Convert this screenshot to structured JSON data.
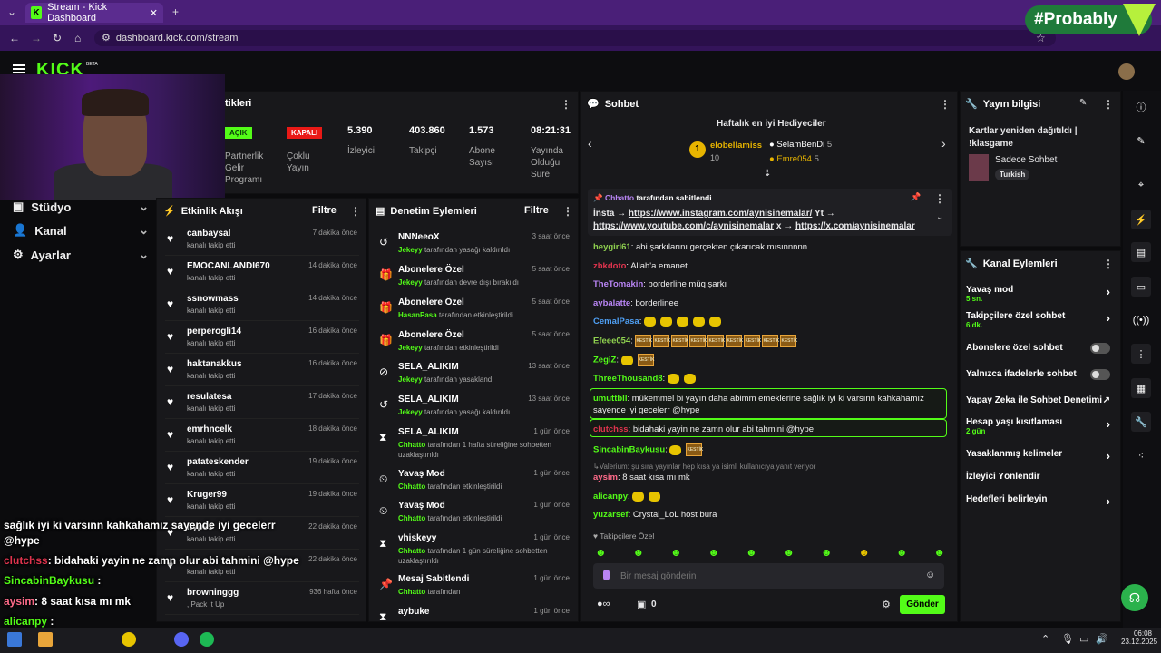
{
  "browser": {
    "tab_title": "Stream - Kick Dashboard",
    "url": "dashboard.kick.com/stream"
  },
  "watermark": "#Probably",
  "kick": {
    "logo": "KICK",
    "beta": "BETA"
  },
  "sidebar": {
    "items": [
      {
        "label": "Stüdyo"
      },
      {
        "label": "Kanal"
      },
      {
        "label": "Ayarlar"
      }
    ]
  },
  "stats": {
    "title": "tikleri",
    "partner": {
      "badge": "AÇIK",
      "label": "Partnerlik Gelir Programı"
    },
    "multi": {
      "badge": "KAPALI",
      "label": "Çoklu Yayın"
    },
    "viewers": {
      "value": "5.390",
      "label": "İzleyici"
    },
    "followers": {
      "value": "403.860",
      "label": "Takipçi"
    },
    "subs": {
      "value": "1.573",
      "label": "Abone Sayısı"
    },
    "duration": {
      "value": "08:21:31",
      "label": "Yayında Olduğu Süre"
    }
  },
  "activity": {
    "title": "Etkinlik Akışı",
    "filter": "Filtre",
    "rows": [
      {
        "name": "canbaysal",
        "sub": "kanalı takip etti",
        "time": "7 dakika önce"
      },
      {
        "name": "EMOCANLANDI670",
        "sub": "kanalı takip etti",
        "time": "14 dakika önce"
      },
      {
        "name": "ssnowmass",
        "sub": "kanalı takip etti",
        "time": "14 dakika önce"
      },
      {
        "name": "perperogli14",
        "sub": "kanalı takip etti",
        "time": "16 dakika önce"
      },
      {
        "name": "haktanakkus",
        "sub": "kanalı takip etti",
        "time": "16 dakika önce"
      },
      {
        "name": "resulatesa",
        "sub": "kanalı takip etti",
        "time": "17 dakika önce"
      },
      {
        "name": "emrhncelk",
        "sub": "kanalı takip etti",
        "time": "18 dakika önce"
      },
      {
        "name": "patateskender",
        "sub": "kanalı takip etti",
        "time": "19 dakika önce"
      },
      {
        "name": "Kruger99",
        "sub": "kanalı takip etti",
        "time": "19 dakika önce"
      },
      {
        "name": "hyp99",
        "sub": "kanalı takip etti",
        "time": "22 dakika önce"
      },
      {
        "name": "",
        "sub": "kanalı takip etti",
        "time": "22 dakika önce"
      },
      {
        "name": "browninggg",
        "sub": ", Pack It Up",
        "time": "936 hafta önce"
      }
    ]
  },
  "moderation": {
    "title": "Denetim Eylemleri",
    "filter": "Filtre",
    "rows": [
      {
        "icon": "↺",
        "name": "NNNeeoX",
        "user": "Jekeyy",
        "rest": "tarafından yasağı kaldırıldı",
        "time": "3 saat önce"
      },
      {
        "icon": "🎁",
        "name": "Abonelere Özel",
        "user": "Jekeyy",
        "rest": "tarafından devre dışı bırakıldı",
        "time": "5 saat önce"
      },
      {
        "icon": "🎁",
        "name": "Abonelere Özel",
        "user": "HasanPasa",
        "rest": "tarafından etkinleştirildi",
        "time": "5 saat önce"
      },
      {
        "icon": "🎁",
        "name": "Abonelere Özel",
        "user": "Jekeyy",
        "rest": "tarafından etkinleştirildi",
        "time": "5 saat önce"
      },
      {
        "icon": "⊘",
        "name": "SELA_ALIKIM",
        "user": "Jekeyy",
        "rest": "tarafından yasaklandı",
        "time": "13 saat önce"
      },
      {
        "icon": "↺",
        "name": "SELA_ALIKIM",
        "user": "Jekeyy",
        "rest": "tarafından yasağı kaldırıldı",
        "time": "13 saat önce"
      },
      {
        "icon": "⧗",
        "name": "SELA_ALIKIM",
        "user": "Chhatto",
        "rest": "tarafından 1 hafta süreliğine sohbetten uzaklaştırıldı",
        "time": "1 gün önce"
      },
      {
        "icon": "⏲",
        "name": "Yavaş Mod",
        "user": "Chhatto",
        "rest": "tarafından etkinleştirildi",
        "time": "1 gün önce"
      },
      {
        "icon": "⏲",
        "name": "Yavaş Mod",
        "user": "Chhatto",
        "rest": "tarafından etkinleştirildi",
        "time": "1 gün önce"
      },
      {
        "icon": "⧗",
        "name": "vhiskeyy",
        "user": "Chhatto",
        "rest": "tarafından 1 gün süreliğine sohbetten uzaklaştırıldı",
        "time": "1 gün önce"
      },
      {
        "icon": "📌",
        "name": "Mesaj Sabitlendi",
        "user": "Chhatto",
        "rest": "tarafından",
        "time": "1 gün önce"
      },
      {
        "icon": "⧗",
        "name": "aybuke",
        "user": "",
        "rest": "",
        "time": "1 gün önce"
      }
    ]
  },
  "chat": {
    "title": "Sohbet",
    "top_title": "Haftalık en iyi Hediyeciler",
    "top1": {
      "rank": "1",
      "name": "elobellamiss",
      "count": "10"
    },
    "top2": {
      "name": "SelamBenDi",
      "count": "5"
    },
    "top3": {
      "name": "Emre054",
      "count": "5"
    },
    "pinned": {
      "by": "Chhatto",
      "by_suffix": "tarafından sabitlendi",
      "line1_a": "İnsta →",
      "link1": "https://www.instagram.com/aynisinemalar/",
      "line1_b": "Yt →",
      "link2": "https://www.youtube.com/c/aynisinemalar",
      "mid": "x →",
      "link3": "https://x.com/aynisinemalar"
    },
    "messages": [
      {
        "user": "heygirl61",
        "color": "#8fd14f",
        "text": "abi şarkılarını gerçekten çıkarıcak mısınnnnn"
      },
      {
        "user": "zbkdoto",
        "color": "#e0344e",
        "text": "Allah'a emanet"
      },
      {
        "user": "TheTomakin",
        "color": "#b985f5",
        "text": "borderline müq şarkı"
      },
      {
        "user": "aybalatte",
        "color": "#b985f5",
        "text": "borderlinee"
      },
      {
        "user": "CemalPasa",
        "color": "#4fa0f5",
        "text": ""
      },
      {
        "user": "Efeee054",
        "color": "#8fd14f",
        "text": ""
      },
      {
        "user": "ZegiZ",
        "color": "#53fc18",
        "text": ""
      },
      {
        "user": "ThreeThousand8",
        "color": "#53fc18",
        "text": ""
      },
      {
        "user": "umuttbll",
        "color": "#53fc18",
        "text": "mükemmel bi yayın daha abimm emeklerine sağlık iyi ki varsınn kahkahamız sayende iyi gecelerr @hype"
      },
      {
        "user": "clutchss",
        "color": "#e0344e",
        "text": "bidahaki yayin ne zamn olur abi tahmini @hype"
      },
      {
        "user": "SincabinBaykusu",
        "color": "#53fc18",
        "text": ""
      },
      {
        "user": "aysim",
        "color": "#ff6b8a",
        "text": "8 saat kısa mı mk",
        "reply": "↳Valerium: şu sıra yayınlar hep kısa ya isimli kullanıcıya yanıt veriyor"
      },
      {
        "user": "alicanpy",
        "color": "#53fc18",
        "text": ""
      },
      {
        "user": "yuzarsef",
        "color": "#53fc18",
        "text": "Crystal_LoL host bura"
      }
    ],
    "followers_only": "Takipçilere Özel",
    "placeholder": "Bir mesaj gönderin",
    "send": "Gönder",
    "points": "0"
  },
  "stream_info": {
    "title": "Yayın bilgisi",
    "stream_title": "Kartlar yeniden dağıtıldı | !klasgame",
    "category": "Sadece Sohbet",
    "tag": "Turkish"
  },
  "channel_actions": {
    "title": "Kanal Eylemleri",
    "items": [
      {
        "label": "Yavaş mod",
        "sub": "5 sn."
      },
      {
        "label": "Takipçilere özel sohbet",
        "sub": "6 dk."
      },
      {
        "label": "Abonelere özel sohbet",
        "sub": ""
      },
      {
        "label": "Yalnızca ifadelerle sohbet",
        "sub": ""
      },
      {
        "label": "Yapay Zeka ile Sohbet Denetimi",
        "sub": ""
      },
      {
        "label": "Hesap yaşı kısıtlaması",
        "sub": "2 gün"
      },
      {
        "label": "Yasaklanmış kelimeler",
        "sub": ""
      },
      {
        "label": "İzleyici Yönlendir",
        "sub": ""
      },
      {
        "label": "Hedefleri belirleyin",
        "sub": ""
      }
    ]
  },
  "overlay": [
    {
      "user": "",
      "text": "sağlık iyi ki varsınn kahkahamız sayende iyi gecelerr"
    },
    {
      "user": "",
      "text": "@hype"
    },
    {
      "user": "clutchss",
      "text": ": bidahaki yayin ne zamn olur abi tahmini @hype"
    },
    {
      "user": "SincabinBaykusu",
      "text": " :"
    },
    {
      "user": "aysim",
      "text": ": 8 saat kısa mı mk"
    },
    {
      "user": "alicanpy",
      "text": " :"
    },
    {
      "user": "yuzarsef",
      "text": ": Crystal_LoL host bura"
    }
  ],
  "taskbar": {
    "time": "06:08",
    "date": "23.12.2025"
  },
  "colors": {
    "accent": "#53fc18",
    "panel": "#18181b",
    "chrome": "#4a1f78"
  }
}
